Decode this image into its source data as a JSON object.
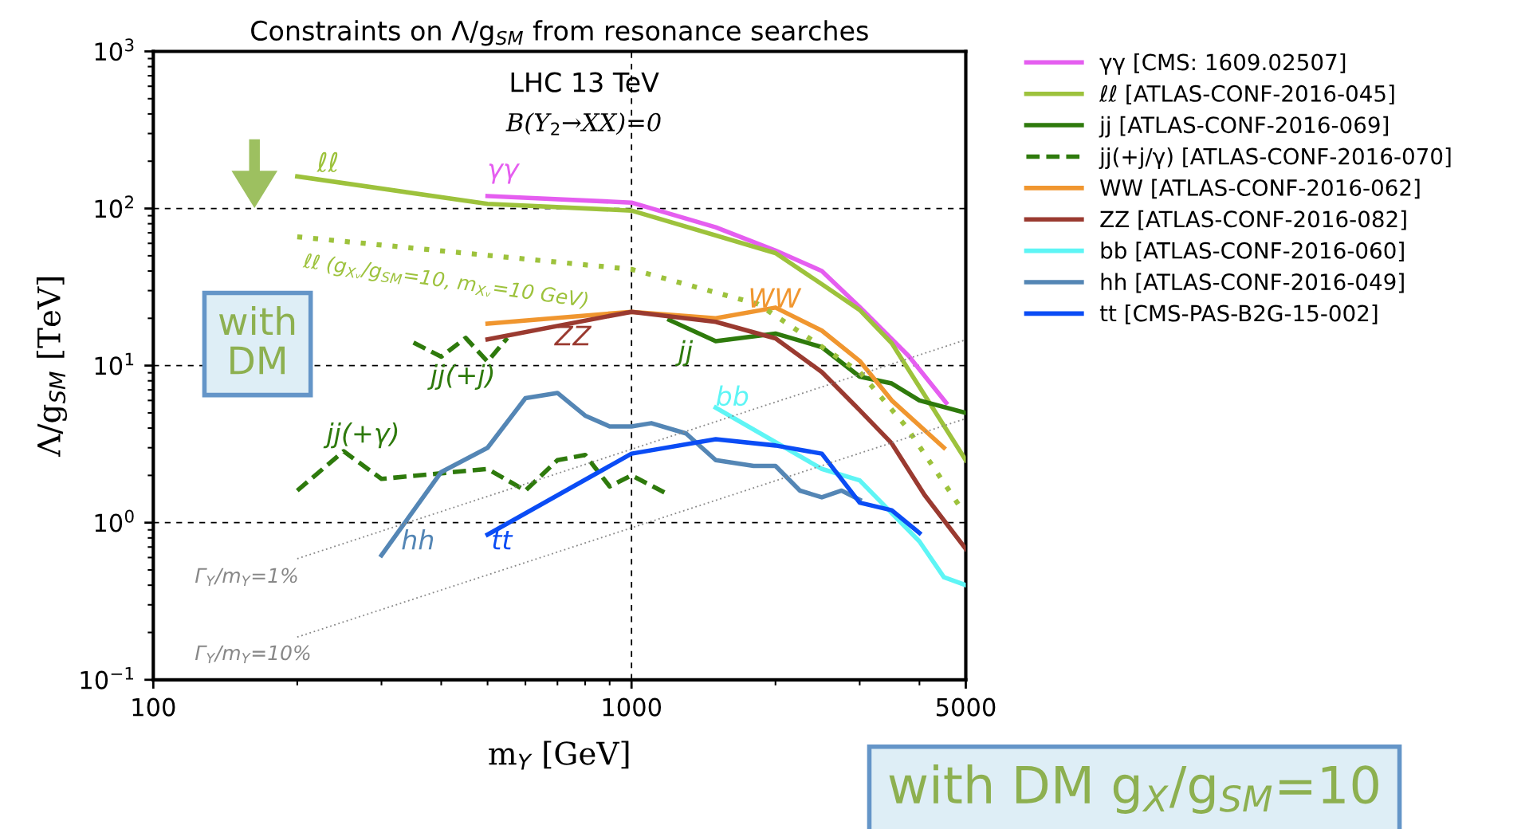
{
  "chart_data": {
    "type": "line",
    "title": "Constraints on Λ/g$_{SM}$ from resonance searches",
    "xlabel": "m$_{Y}$ [GeV]",
    "ylabel": "Λ/g$_{SM}$ [TeV]",
    "log": "xy",
    "xlim": [
      100,
      5000
    ],
    "ylim": [
      0.1,
      1000
    ],
    "xticks": [
      100,
      1000,
      5000
    ],
    "yticks": [
      {
        "value": 0.1,
        "label": "10$^{−1}$"
      },
      {
        "value": 1,
        "label": "10$^{0}$"
      },
      {
        "value": 10,
        "label": "10$^{1}$"
      },
      {
        "value": 100,
        "label": "10$^{2}$"
      },
      {
        "value": 1000,
        "label": "10$^{3}$"
      }
    ],
    "grid": true,
    "legend": "right",
    "line_style": "solid",
    "marker": "none",
    "series": [
      {
        "name": "γγ [CMS: 1609.02507]",
        "color": "#e55ef0",
        "x": [
          500,
          1000,
          1500,
          2000,
          2500,
          3000,
          3800,
          4550
        ],
        "values": [
          120,
          109,
          76,
          54,
          40,
          23.6,
          11.5,
          5.8
        ]
      },
      {
        "name": "ℓℓ [ATLAS-CONF-2016-045]",
        "color": "#9dc23c",
        "x": [
          200,
          500,
          1000,
          2000,
          2500,
          3000,
          3500,
          5000
        ],
        "values": [
          160,
          107,
          97,
          52,
          33,
          22.6,
          13.9,
          2.5
        ]
      },
      {
        "name": "jj [ATLAS-CONF-2016-069]",
        "color": "#2e7a0c",
        "x": [
          1200,
          1500,
          2000,
          2500,
          3000,
          3500,
          4000,
          5000
        ],
        "values": [
          19.5,
          14.3,
          16,
          13.1,
          8.5,
          7.7,
          6.0,
          5.0
        ]
      },
      {
        "name": "jj(+j/γ) [ATLAS-CONF-2016-070]",
        "color": "#2e7a0c",
        "line_style": "dashed",
        "x": [
          200,
          250,
          300,
          500,
          600,
          700,
          800,
          900,
          1000,
          1200
        ],
        "values": [
          1.6,
          2.85,
          1.9,
          2.2,
          1.6,
          2.5,
          2.7,
          1.7,
          2.0,
          1.5
        ]
      },
      {
        "color": "#2e7a0c",
        "line_style": "dashed",
        "x": [
          350,
          400,
          450,
          500,
          550
        ],
        "values": [
          14,
          11.4,
          15,
          10.6,
          15
        ]
      },
      {
        "name": "WW [ATLAS-CONF-2016-062]",
        "color": "#f0962f",
        "x": [
          500,
          1000,
          1500,
          2000,
          2500,
          3000,
          3500,
          4500
        ],
        "values": [
          18.5,
          22,
          20,
          23.4,
          16.7,
          10.7,
          6.0,
          3.0
        ]
      },
      {
        "name": "ZZ [ATLAS-CONF-2016-082]",
        "color": "#9a3a30",
        "x": [
          500,
          1000,
          1500,
          2000,
          2500,
          3000,
          3500,
          4100,
          5000
        ],
        "values": [
          14.7,
          22,
          19,
          14.9,
          9.1,
          5.2,
          3.2,
          1.5,
          0.68
        ]
      },
      {
        "name": "bb [ATLAS-CONF-2016-060]",
        "color": "#5ef5f5",
        "x": [
          1500,
          2500,
          3000,
          4000,
          4500,
          5000
        ],
        "values": [
          5.4,
          2.2,
          1.86,
          0.76,
          0.45,
          0.4
        ]
      },
      {
        "name": "hh [ATLAS-CONF-2016-049]",
        "color": "#5486b5",
        "x": [
          300,
          400,
          500,
          600,
          700,
          800,
          900,
          1000,
          1100,
          1300,
          1500,
          1800,
          2000,
          2250,
          2500,
          2750,
          3000
        ],
        "values": [
          0.62,
          2.1,
          3.0,
          6.2,
          6.7,
          4.8,
          4.1,
          4.1,
          4.3,
          3.7,
          2.5,
          2.3,
          2.3,
          1.6,
          1.45,
          1.6,
          1.4
        ]
      },
      {
        "name": "tt [CMS-PAS-B2G-15-002]",
        "color": "#0a4cf5",
        "x": [
          500,
          1000,
          1500,
          2000,
          2500,
          3000,
          3500,
          4000
        ],
        "values": [
          0.84,
          2.75,
          3.4,
          3.1,
          2.75,
          1.34,
          1.2,
          0.86
        ]
      },
      {
        "color": "#9dc23c",
        "line_style": "dotted",
        "x": [
          200,
          1000,
          1840,
          3000,
          3750,
          4900
        ],
        "values": [
          66,
          41,
          24.6,
          9.1,
          4.1,
          1.22
        ]
      },
      {
        "color": "#888888",
        "line_style": "dotted",
        "x": [
          200,
          5000
        ],
        "values": [
          0.59,
          14.6
        ]
      },
      {
        "color": "#888888",
        "line_style": "dotted",
        "x": [
          200,
          5000
        ],
        "values": [
          0.187,
          4.6
        ]
      }
    ],
    "annotations": [
      "ℓℓ",
      "γγ",
      "jj",
      "jj(+j)",
      "jj(+γ)",
      "WW",
      "ZZ",
      "bb",
      "hh",
      "tt",
      "ℓℓ (g$_{Xᵥ}$/g$_{SM}$=10, m$_{Xᵥ}$=10 GeV)",
      "Γ$_{Y}$/m$_{Y}$=1%",
      "Γ$_{Y}$/m$_{Y}$=10%",
      "LHC 13 TeV",
      "B(Y$_{2}$→XX)=0",
      "with\nDM",
      "with DM g$_{X}$/g$_{SM}$=10"
    ]
  }
}
